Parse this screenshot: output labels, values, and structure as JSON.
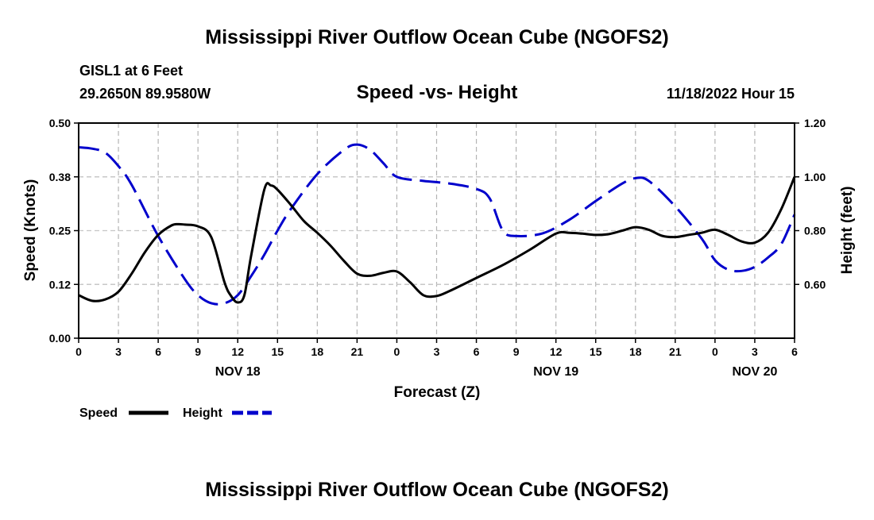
{
  "chart_data": {
    "type": "line",
    "title": "Mississippi River Outflow Ocean Cube (NGOFS2)",
    "footer_title": "Mississippi River Outflow Ocean Cube (NGOFS2)",
    "station": "GISL1 at 6 Feet",
    "coordinates": "29.2650N  89.9580W",
    "subtitle": "Speed -vs- Height",
    "timestamp": "11/18/2022 Hour 15",
    "xlabel": "Forecast (Z)",
    "ylabel_left": "Speed (Knots)",
    "ylabel_right": "Height (feet)",
    "x_range_hours": [
      0,
      54
    ],
    "x_ticks": [
      "0",
      "3",
      "6",
      "9",
      "12",
      "15",
      "18",
      "21",
      "0",
      "3",
      "6",
      "9",
      "12",
      "15",
      "18",
      "21",
      "0",
      "3",
      "6"
    ],
    "x_tick_hours": [
      0,
      3,
      6,
      9,
      12,
      15,
      18,
      21,
      24,
      27,
      30,
      33,
      36,
      39,
      42,
      45,
      48,
      51,
      54
    ],
    "date_labels": [
      {
        "text": "NOV 18",
        "hour": 12
      },
      {
        "text": "NOV 19",
        "hour": 36
      },
      {
        "text": "NOV 20",
        "hour": 51
      }
    ],
    "y_left_range": [
      0,
      0.5
    ],
    "y_left_ticks": [
      "0.00",
      "0.12",
      "0.25",
      "0.38",
      "0.50"
    ],
    "y_left_tick_values": [
      0,
      0.125,
      0.25,
      0.375,
      0.5
    ],
    "y_right_range": [
      0.4,
      1.2
    ],
    "y_right_ticks": [
      "0.60",
      "0.80",
      "1.00",
      "1.20"
    ],
    "y_right_tick_values": [
      0.6,
      0.8,
      1.0,
      1.2
    ],
    "grid": true,
    "series": [
      {
        "name": "Speed",
        "axis": "left",
        "color": "#000000",
        "style": "solid",
        "x": [
          0,
          1,
          2,
          3,
          4,
          5,
          6,
          7,
          7.5,
          8,
          9,
          10,
          11,
          11.5,
          12,
          12.5,
          13,
          14,
          14.5,
          15,
          16,
          17,
          18,
          19,
          20,
          21,
          22,
          23,
          24,
          25,
          26,
          27,
          28,
          30,
          32,
          34,
          36,
          37,
          38,
          39,
          40,
          41,
          42,
          43,
          44,
          45,
          46,
          47,
          48,
          49,
          50,
          51,
          52,
          53,
          54
        ],
        "values": [
          0.1,
          0.087,
          0.09,
          0.108,
          0.15,
          0.2,
          0.24,
          0.262,
          0.265,
          0.264,
          0.26,
          0.235,
          0.13,
          0.098,
          0.083,
          0.1,
          0.19,
          0.345,
          0.355,
          0.345,
          0.31,
          0.272,
          0.245,
          0.215,
          0.18,
          0.15,
          0.145,
          0.152,
          0.155,
          0.13,
          0.1,
          0.098,
          0.11,
          0.14,
          0.17,
          0.205,
          0.243,
          0.245,
          0.243,
          0.24,
          0.242,
          0.25,
          0.258,
          0.252,
          0.238,
          0.235,
          0.24,
          0.245,
          0.252,
          0.24,
          0.225,
          0.222,
          0.245,
          0.3,
          0.375
        ]
      },
      {
        "name": "Height",
        "axis": "right",
        "color": "#0000cc",
        "style": "dashed",
        "x": [
          0,
          1,
          2,
          3,
          4,
          6,
          8,
          9,
          10,
          11,
          12,
          13,
          14,
          15,
          16,
          18,
          20,
          21,
          22,
          23,
          24,
          26,
          28,
          30,
          31,
          32,
          33,
          35,
          37,
          39,
          41,
          42,
          43,
          45,
          47,
          48,
          49,
          50,
          51,
          52,
          53,
          54
        ],
        "values": [
          1.11,
          1.105,
          1.09,
          1.04,
          0.97,
          0.78,
          0.62,
          0.56,
          0.53,
          0.53,
          0.56,
          0.63,
          0.71,
          0.8,
          0.88,
          1.01,
          1.1,
          1.12,
          1.1,
          1.05,
          1.0,
          0.985,
          0.975,
          0.955,
          0.92,
          0.8,
          0.78,
          0.79,
          0.84,
          0.91,
          0.975,
          0.995,
          0.985,
          0.89,
          0.77,
          0.69,
          0.655,
          0.65,
          0.665,
          0.7,
          0.75,
          0.86
        ]
      }
    ],
    "legend": [
      {
        "label": "Speed",
        "color": "#000000",
        "style": "solid"
      },
      {
        "label": "Height",
        "color": "#0000cc",
        "style": "dashed"
      }
    ]
  }
}
